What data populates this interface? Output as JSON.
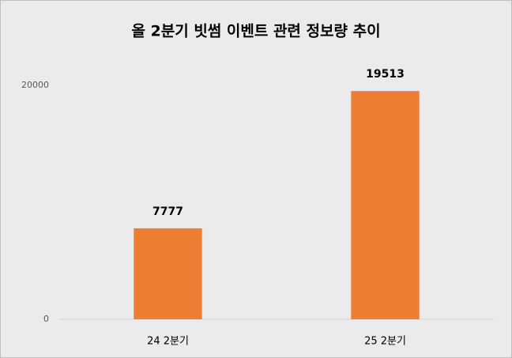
{
  "chart_data": {
    "type": "bar",
    "title": "올 2분기 빗썸 이벤트 관련 정보량 추이",
    "categories": [
      "24 2분기",
      "25 2분기"
    ],
    "values": [
      7777,
      19513
    ],
    "color": "#ed7d31",
    "ylim": [
      0,
      20000
    ],
    "yticks": [
      0,
      20000
    ],
    "grid": false
  }
}
